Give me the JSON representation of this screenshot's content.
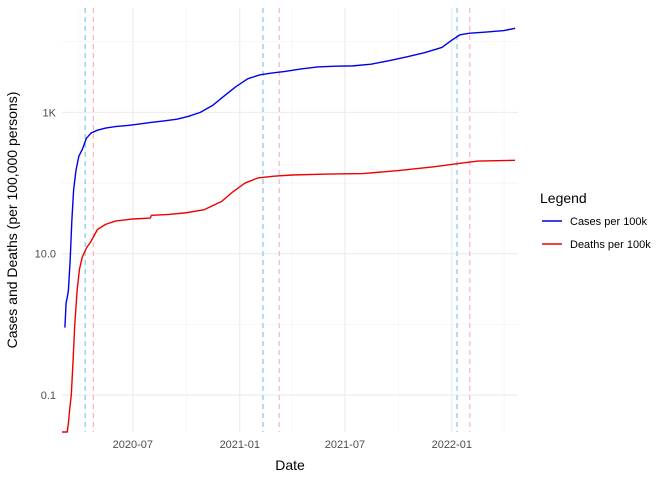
{
  "chart_data": {
    "type": "line",
    "xlabel": "Date",
    "ylabel": "Cases and Deaths (per 100,000 persons)",
    "y_scale": "log10",
    "ylim": [
      0.03,
      30000
    ],
    "xlim": [
      "2020-03-01",
      "2022-04-25"
    ],
    "x_ticks": [
      "2020-07-01",
      "2021-01-01",
      "2021-07-01",
      "2022-01-01"
    ],
    "x_tick_labels": [
      "2020-07",
      "2021-01",
      "2021-07",
      "2022-01"
    ],
    "y_ticks": [
      0.1,
      10,
      1000
    ],
    "y_tick_labels": [
      "0.1",
      "10.0",
      "1K"
    ],
    "grid": true,
    "legend": {
      "title": "Legend",
      "position": "right",
      "entries": [
        {
          "label": "Cases per 100k",
          "color": "#0000ee"
        },
        {
          "label": "Deaths per 100k",
          "color": "#ee0000"
        }
      ]
    },
    "vlines": [
      {
        "x": "2020-04-10",
        "color": "#87ceeb",
        "style": "dashed"
      },
      {
        "x": "2020-04-24",
        "color": "#ffb6c1",
        "style": "dashed"
      },
      {
        "x": "2021-02-10",
        "color": "#87ceeb",
        "style": "dashed"
      },
      {
        "x": "2021-03-10",
        "color": "#ffb6c1",
        "style": "dashed"
      },
      {
        "x": "2022-01-10",
        "color": "#87ceeb",
        "style": "dashed"
      },
      {
        "x": "2022-02-01",
        "color": "#ffb6c1",
        "style": "dashed"
      }
    ],
    "series": [
      {
        "name": "Cases per 100k",
        "color": "#0000ee",
        "points": [
          [
            "2020-03-06",
            0.9
          ],
          [
            "2020-03-08",
            2.0
          ],
          [
            "2020-03-10",
            2.4
          ],
          [
            "2020-03-12",
            3.0
          ],
          [
            "2020-03-15",
            8
          ],
          [
            "2020-03-18",
            30
          ],
          [
            "2020-03-21",
            80
          ],
          [
            "2020-03-25",
            150
          ],
          [
            "2020-03-30",
            240
          ],
          [
            "2020-04-05",
            300
          ],
          [
            "2020-04-12",
            430
          ],
          [
            "2020-04-20",
            510
          ],
          [
            "2020-05-01",
            560
          ],
          [
            "2020-05-15",
            600
          ],
          [
            "2020-06-01",
            630
          ],
          [
            "2020-06-20",
            650
          ],
          [
            "2020-07-10",
            680
          ],
          [
            "2020-08-01",
            720
          ],
          [
            "2020-08-25",
            760
          ],
          [
            "2020-09-15",
            800
          ],
          [
            "2020-10-05",
            880
          ],
          [
            "2020-10-25",
            1000
          ],
          [
            "2020-11-15",
            1250
          ],
          [
            "2020-12-05",
            1700
          ],
          [
            "2020-12-25",
            2300
          ],
          [
            "2021-01-15",
            3000
          ],
          [
            "2021-02-05",
            3400
          ],
          [
            "2021-02-25",
            3600
          ],
          [
            "2021-03-20",
            3800
          ],
          [
            "2021-04-15",
            4100
          ],
          [
            "2021-05-15",
            4400
          ],
          [
            "2021-06-15",
            4500
          ],
          [
            "2021-07-15",
            4550
          ],
          [
            "2021-08-15",
            4800
          ],
          [
            "2021-09-15",
            5400
          ],
          [
            "2021-10-15",
            6100
          ],
          [
            "2021-11-15",
            7000
          ],
          [
            "2021-12-15",
            8300
          ],
          [
            "2022-01-01",
            10500
          ],
          [
            "2022-01-15",
            12500
          ],
          [
            "2022-02-01",
            13200
          ],
          [
            "2022-03-01",
            13700
          ],
          [
            "2022-04-01",
            14400
          ],
          [
            "2022-04-20",
            15500
          ]
        ]
      },
      {
        "name": "Deaths per 100k",
        "color": "#ee0000",
        "points": [
          [
            "2020-03-01",
            0.03
          ],
          [
            "2020-03-10",
            0.03
          ],
          [
            "2020-03-12",
            0.04
          ],
          [
            "2020-03-14",
            0.06
          ],
          [
            "2020-03-17",
            0.1
          ],
          [
            "2020-03-20",
            0.3
          ],
          [
            "2020-03-23",
            1
          ],
          [
            "2020-03-27",
            3
          ],
          [
            "2020-03-31",
            6
          ],
          [
            "2020-04-05",
            9
          ],
          [
            "2020-04-12",
            12
          ],
          [
            "2020-04-20",
            15
          ],
          [
            "2020-05-01",
            22
          ],
          [
            "2020-05-15",
            26
          ],
          [
            "2020-06-01",
            29
          ],
          [
            "2020-07-01",
            31
          ],
          [
            "2020-07-31",
            32
          ],
          [
            "2020-08-02",
            35
          ],
          [
            "2020-09-01",
            36
          ],
          [
            "2020-10-01",
            38
          ],
          [
            "2020-11-01",
            42
          ],
          [
            "2020-12-01",
            55
          ],
          [
            "2020-12-20",
            75
          ],
          [
            "2021-01-10",
            100
          ],
          [
            "2021-02-01",
            118
          ],
          [
            "2021-03-01",
            125
          ],
          [
            "2021-04-01",
            130
          ],
          [
            "2021-06-01",
            134
          ],
          [
            "2021-08-01",
            136
          ],
          [
            "2021-10-01",
            150
          ],
          [
            "2021-12-01",
            170
          ],
          [
            "2022-01-15",
            190
          ],
          [
            "2022-02-15",
            205
          ],
          [
            "2022-04-20",
            210
          ]
        ]
      }
    ]
  }
}
